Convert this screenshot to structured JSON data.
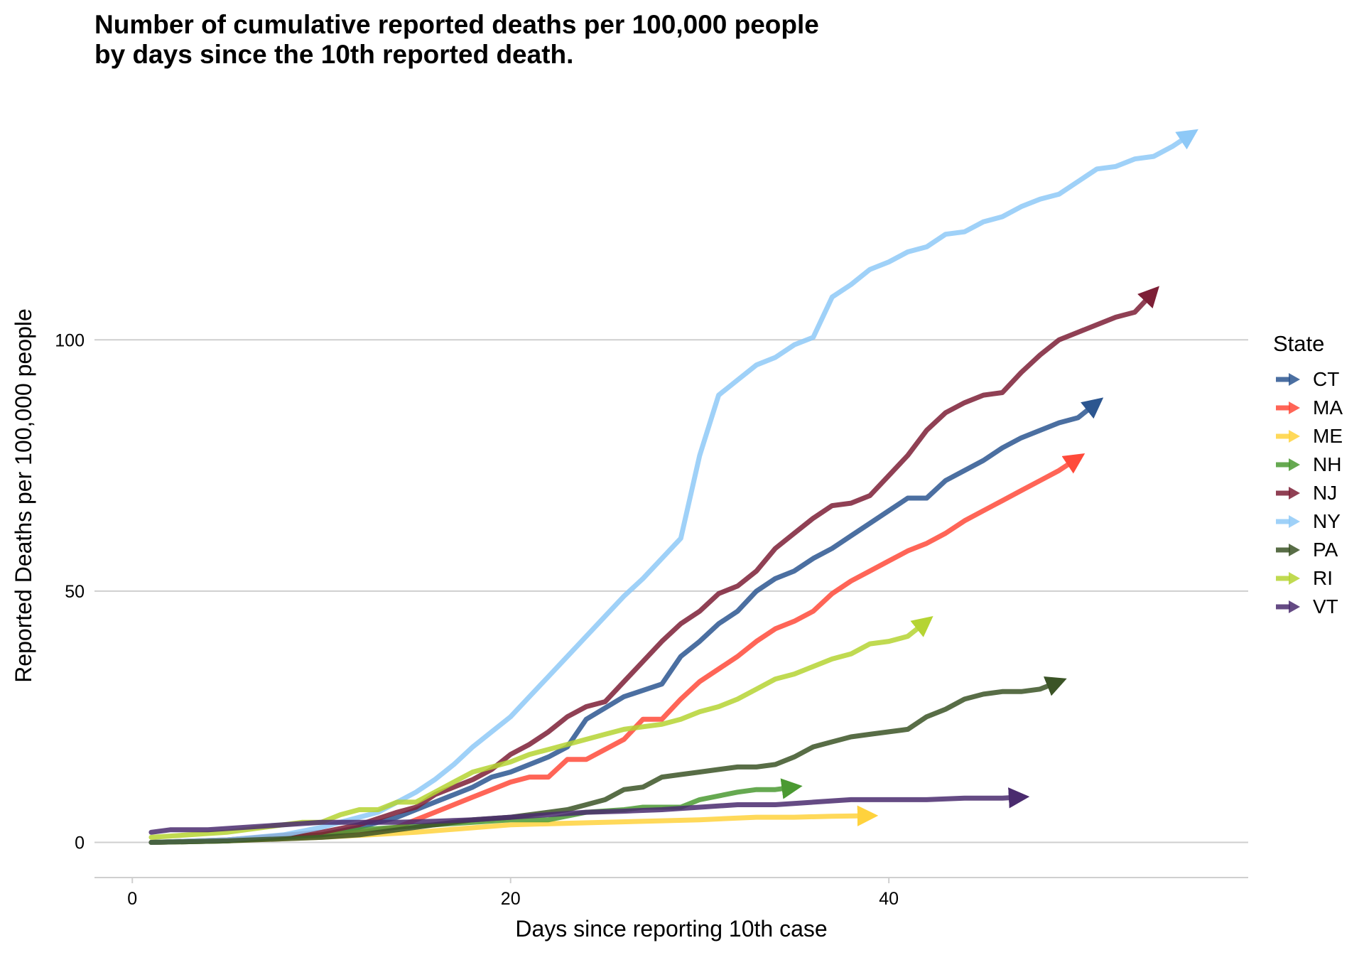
{
  "title": {
    "line1": "Number of cumulative reported deaths per 100,000 people",
    "line2": "by days since the 10th reported death."
  },
  "chart_data": {
    "type": "line",
    "title": "Number of cumulative reported deaths per 100,000 people by days since the 10th reported death.",
    "xlabel": "Days since reporting 10th case",
    "ylabel": "Reported Deaths per 100,000 people",
    "xlim": [
      -2,
      59
    ],
    "ylim": [
      -7,
      145
    ],
    "x_ticks": [
      0,
      20,
      40
    ],
    "x_tick_labels": [
      "0",
      "20",
      "40"
    ],
    "y_ticks": [
      0,
      50,
      100
    ],
    "y_tick_labels": [
      "0",
      "50",
      "100"
    ],
    "grid": "horizontal major gridlines",
    "legend_title": "State",
    "legend_position": "right",
    "series": [
      {
        "name": "CT",
        "color": "#2c5690",
        "x": [
          1,
          5,
          10,
          12,
          14,
          16,
          18,
          19,
          20,
          22,
          23,
          24,
          26,
          28,
          29,
          30,
          31,
          32,
          33,
          34,
          35,
          36,
          37,
          38,
          39,
          40,
          41,
          42,
          43,
          44,
          45,
          46,
          47,
          48,
          49,
          50,
          51
        ],
        "y": [
          0,
          0.3,
          1.5,
          3,
          5,
          8,
          11,
          13,
          14,
          17,
          19,
          24.5,
          29,
          31.5,
          37,
          40,
          43.5,
          46,
          50,
          52.5,
          54,
          56.5,
          58.5,
          61,
          63.5,
          66,
          68.5,
          68.5,
          72,
          74,
          76,
          78.5,
          80.5,
          82,
          83.5,
          84.5,
          87.5
        ]
      },
      {
        "name": "MA",
        "color": "#ff4a3a",
        "x": [
          1,
          5,
          10,
          12,
          14,
          16,
          18,
          19,
          20,
          21,
          22,
          23,
          24,
          26,
          27,
          28,
          29,
          30,
          32,
          33,
          34,
          35,
          36,
          37,
          38,
          39,
          40,
          41,
          42,
          43,
          44,
          45,
          46,
          47,
          48,
          49,
          50
        ],
        "y": [
          0,
          0.4,
          1.5,
          2,
          3,
          6,
          9,
          10.5,
          12,
          13,
          13,
          16.5,
          16.5,
          20.5,
          24.5,
          24.5,
          28.5,
          32,
          37,
          40,
          42.5,
          44,
          46,
          49.5,
          52,
          54,
          56,
          58,
          59.5,
          61.5,
          64,
          66,
          68,
          70,
          72,
          74,
          76.5
        ]
      },
      {
        "name": "ME",
        "color": "#ffd23d",
        "x": [
          1,
          5,
          10,
          15,
          20,
          25,
          30,
          33,
          35,
          37,
          39
        ],
        "y": [
          0,
          0.3,
          1,
          2,
          3.5,
          4,
          4.5,
          5,
          5,
          5.2,
          5.3
        ]
      },
      {
        "name": "NH",
        "color": "#4b9a32",
        "x": [
          1,
          5,
          10,
          12,
          14,
          16,
          18,
          20,
          22,
          24,
          26,
          27,
          28,
          29,
          30,
          32,
          33,
          34,
          35
        ],
        "y": [
          0,
          0.3,
          1.5,
          2.5,
          3,
          3.5,
          4,
          4.5,
          4.5,
          6,
          6.5,
          7,
          7,
          7,
          8.5,
          10,
          10.5,
          10.5,
          11
        ]
      },
      {
        "name": "NJ",
        "color": "#7d1f36",
        "x": [
          1,
          5,
          10,
          12,
          14,
          15,
          16,
          17,
          18,
          19,
          20,
          21,
          22,
          23,
          24,
          25,
          26,
          27,
          28,
          29,
          30,
          31,
          32,
          33,
          34,
          35,
          36,
          37,
          38,
          39,
          40,
          41,
          42,
          43,
          44,
          45,
          46,
          47,
          48,
          49,
          50,
          51,
          52,
          53,
          54
        ],
        "y": [
          0,
          0.5,
          2,
          3.5,
          6,
          7,
          9.5,
          11,
          12.5,
          14.5,
          17.5,
          19.5,
          22,
          25,
          27,
          28,
          32,
          36,
          40,
          43.5,
          46,
          49.5,
          51,
          54,
          58.5,
          61.5,
          64.5,
          67,
          67.5,
          69,
          73,
          77,
          82,
          85.5,
          87.5,
          89,
          89.5,
          93.5,
          97,
          100,
          101.5,
          103,
          104.5,
          105.5,
          109.5
        ]
      },
      {
        "name": "NY",
        "color": "#8ec9f7",
        "x": [
          1,
          5,
          8,
          10,
          13,
          15,
          16,
          17,
          18,
          19,
          20,
          21,
          22,
          23,
          24,
          25,
          26,
          27,
          28,
          29,
          30,
          31,
          32,
          33,
          34,
          35,
          36,
          37,
          38,
          39,
          40,
          41,
          42,
          43,
          44,
          45,
          46,
          47,
          48,
          49,
          50,
          51,
          52,
          53,
          54,
          55,
          56
        ],
        "y": [
          0,
          0.5,
          1.5,
          3,
          6,
          10,
          12.5,
          15.5,
          19,
          22,
          25,
          29,
          33,
          37,
          41,
          45,
          49,
          52.5,
          56.5,
          60.5,
          77,
          89,
          92,
          95,
          96.5,
          99,
          100.5,
          108.5,
          111,
          114,
          115.5,
          117.5,
          118.5,
          121,
          121.5,
          123.5,
          124.5,
          126.5,
          128,
          129,
          131.5,
          134,
          134.5,
          136,
          136.5,
          138.5,
          141
        ]
      },
      {
        "name": "PA",
        "color": "#3b5426",
        "x": [
          1,
          5,
          10,
          12,
          14,
          15,
          16,
          18,
          20,
          22,
          23,
          24,
          25,
          26,
          27,
          28,
          29,
          30,
          31,
          32,
          33,
          34,
          35,
          36,
          37,
          38,
          39,
          40,
          41,
          42,
          43,
          44,
          45,
          46,
          47,
          48,
          49
        ],
        "y": [
          0,
          0.3,
          1,
          1.5,
          2.5,
          3,
          3.5,
          4.5,
          5,
          6,
          6.5,
          7.5,
          8.5,
          10.5,
          11,
          13,
          13.5,
          14,
          14.5,
          15,
          15,
          15.5,
          17,
          19,
          20,
          21,
          21.5,
          22,
          22.5,
          25,
          26.5,
          28.5,
          29.5,
          30,
          30,
          30.5,
          32
        ]
      },
      {
        "name": "RI",
        "color": "#b5d433",
        "x": [
          1,
          5,
          8,
          9,
          10,
          11,
          12,
          13,
          14,
          15,
          16,
          17,
          18,
          19,
          20,
          21,
          22,
          23,
          24,
          25,
          26,
          27,
          28,
          29,
          30,
          31,
          32,
          33,
          34,
          35,
          36,
          37,
          38,
          39,
          40,
          41,
          42
        ],
        "y": [
          1,
          2,
          3.5,
          4,
          4,
          5.5,
          6.5,
          6.5,
          8,
          8,
          10,
          12,
          14,
          15,
          16,
          17.5,
          18.5,
          19.5,
          20.5,
          21.5,
          22.5,
          23,
          23.5,
          24.5,
          26,
          27,
          28.5,
          30.5,
          32.5,
          33.5,
          35,
          36.5,
          37.5,
          39.5,
          40,
          41,
          44
        ]
      },
      {
        "name": "VT",
        "color": "#4a2b6e",
        "x": [
          1,
          2,
          4,
          6,
          8,
          10,
          12,
          14,
          16,
          18,
          20,
          22,
          24,
          26,
          28,
          30,
          32,
          34,
          36,
          38,
          40,
          42,
          44,
          46,
          47
        ],
        "y": [
          2,
          2.5,
          2.5,
          3,
          3.5,
          4,
          4,
          4,
          4.2,
          4.5,
          5,
          5.5,
          6,
          6.2,
          6.5,
          7,
          7.5,
          7.5,
          8,
          8.5,
          8.5,
          8.5,
          8.8,
          8.8,
          9
        ]
      }
    ]
  }
}
